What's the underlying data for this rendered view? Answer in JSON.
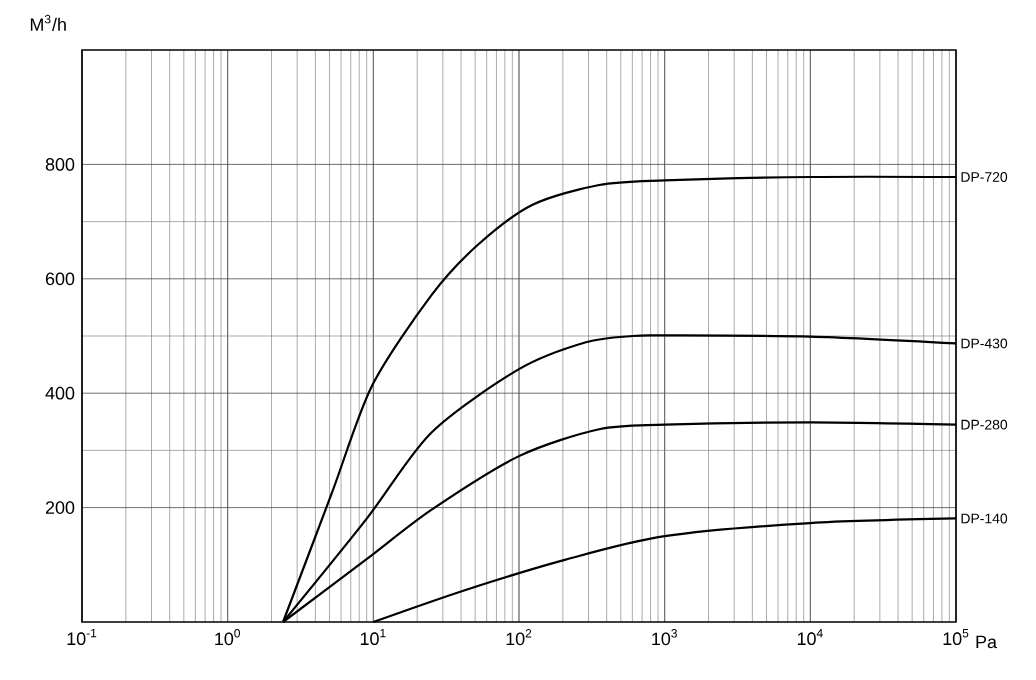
{
  "chart_data": {
    "type": "line",
    "xlabel": "Pa",
    "ylabel": "M$^{3}$/h",
    "log": "x",
    "grid": true,
    "legend": false,
    "xlim": [
      0.1,
      100000
    ],
    "ylim": [
      0,
      1000
    ],
    "xticks": [
      {
        "value": 0.1,
        "label": "10$^{-1}$"
      },
      {
        "value": 1,
        "label": "10$^{0}$"
      },
      {
        "value": 10,
        "label": "10$^{1}$"
      },
      {
        "value": 100,
        "label": "10$^{2}$"
      },
      {
        "value": 1000,
        "label": "10$^{3}$"
      },
      {
        "value": 10000,
        "label": "10$^{4}$"
      },
      {
        "value": 100000,
        "label": "10$^{5}$"
      }
    ],
    "yticks": [
      200,
      400,
      600,
      800
    ],
    "series": [
      {
        "name": "DP-720",
        "color": "#000000",
        "x": [
          2.4,
          5.2,
          9.8,
          25,
          52,
          123,
          355,
          1000,
          10000,
          100000
        ],
        "values": [
          0,
          226,
          413,
          571,
          659,
          729,
          764,
          772,
          778,
          778
        ]
      },
      {
        "name": "DP-430",
        "color": "#000000",
        "x": [
          2.4,
          8.9,
          25,
          100,
          288,
          603,
          1000,
          10000,
          100000
        ],
        "values": [
          0,
          179,
          331,
          442,
          489,
          500,
          501,
          499,
          487
        ]
      },
      {
        "name": "DP-280",
        "color": "#000000",
        "x": [
          2.4,
          8.9,
          25,
          100,
          355,
          1000,
          10000,
          100000
        ],
        "values": [
          0,
          109,
          196,
          290,
          337,
          345,
          349,
          345
        ]
      },
      {
        "name": "DP-140",
        "color": "#000000",
        "x": [
          10,
          43,
          209,
          1000,
          10000,
          100000
        ],
        "values": [
          0,
          56,
          109,
          150,
          173,
          181
        ]
      }
    ]
  }
}
